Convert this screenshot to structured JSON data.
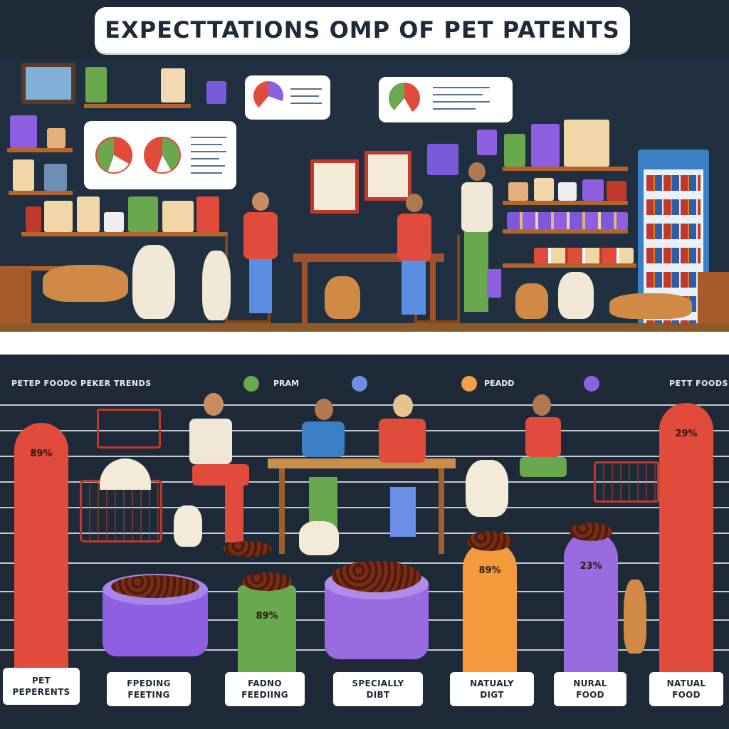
{
  "title": "EXPECTTATIONS OMP OF PET PATENTS",
  "header": {
    "left_label": "PETEP FOODO PEKER TRENDS",
    "right_label": "PETT FOODS"
  },
  "legend": [
    {
      "label": "PRAM",
      "color": "#6aa84f"
    },
    {
      "label": "",
      "color": "#6b8fe8"
    },
    {
      "label": "PEADD",
      "color": "#f0a04b"
    },
    {
      "label": "",
      "color": "#8e5fe0"
    }
  ],
  "colors": {
    "red": "#e14b3b",
    "green": "#6aa84f",
    "purple": "#9a6be0",
    "orange": "#f39a3c",
    "navy": "#1f2a38"
  },
  "chart_data": {
    "type": "bar",
    "bars": [
      {
        "value_label": "89%",
        "category": [
          "PET",
          "PEPERENTS"
        ]
      },
      {
        "value_label": "",
        "category": [
          "FPEDING",
          "FEETING"
        ]
      },
      {
        "value_label": "89%",
        "category": [
          "FADNO",
          "FEEDIING"
        ]
      },
      {
        "value_label": "",
        "category": [
          "SPECIALLY",
          "DIBT"
        ]
      },
      {
        "value_label": "89%",
        "category": [
          "NATUALY",
          "DIGT"
        ]
      },
      {
        "value_label": "23%",
        "category": [
          "NURAL",
          "FOOD"
        ]
      },
      {
        "value_label": "29%",
        "category": [
          "NATUAL",
          "FOOD"
        ]
      }
    ]
  }
}
